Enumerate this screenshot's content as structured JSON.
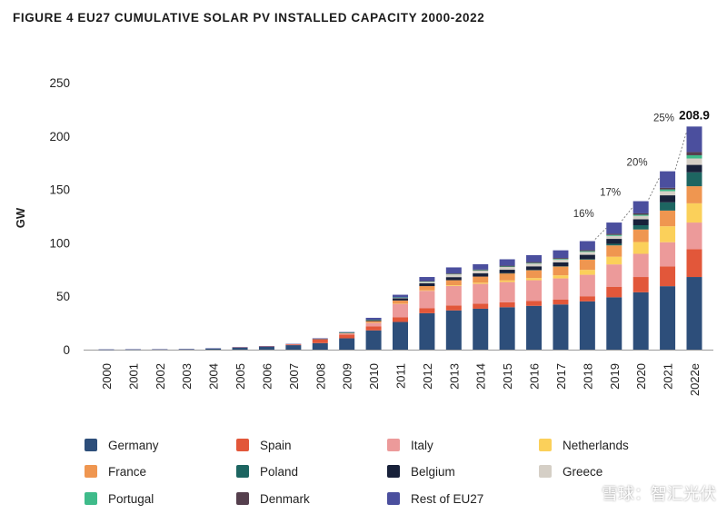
{
  "chart_data": {
    "type": "bar",
    "stacked": true,
    "title": "FIGURE 4 EU27 CUMULATIVE SOLAR PV INSTALLED CAPACITY 2000-2022",
    "xlabel": "",
    "ylabel": "GW",
    "ylim": [
      0,
      250
    ],
    "yticks": [
      0,
      50,
      100,
      150,
      200,
      250
    ],
    "grid": false,
    "legend_placement": "bottom",
    "categories": [
      "2000",
      "2001",
      "2002",
      "2003",
      "2004",
      "2005",
      "2006",
      "2007",
      "2008",
      "2009",
      "2010",
      "2011",
      "2012",
      "2013",
      "2014",
      "2015",
      "2016",
      "2017",
      "2018",
      "2019",
      "2020",
      "2021",
      "2022e"
    ],
    "series": [
      {
        "name": "Germany",
        "color": "#2d4e7a",
        "values": [
          0.1,
          0.2,
          0.3,
          0.4,
          1.1,
          2.1,
          2.9,
          4.2,
          6.1,
          10.6,
          18,
          25.9,
          34.1,
          36.7,
          38.3,
          39.7,
          41,
          42.3,
          45.2,
          49,
          53.7,
          59.4,
          68
        ]
      },
      {
        "name": "Spain",
        "color": "#e2573a",
        "values": [
          0,
          0,
          0,
          0,
          0,
          0.1,
          0.2,
          0.7,
          3.4,
          3.4,
          3.9,
          4.3,
          4.6,
          4.7,
          4.7,
          4.7,
          4.7,
          4.7,
          4.8,
          9.9,
          14.3,
          18.6,
          26
        ]
      },
      {
        "name": "Italy",
        "color": "#ec9a9a",
        "values": [
          0,
          0,
          0,
          0,
          0,
          0,
          0.1,
          0.4,
          0.5,
          1.1,
          3.5,
          12.8,
          16.4,
          18.2,
          18.6,
          18.9,
          19.3,
          19.7,
          20.1,
          20.9,
          21.7,
          22.6,
          25
        ]
      },
      {
        "name": "Netherlands",
        "color": "#fbd05a",
        "values": [
          0,
          0,
          0,
          0,
          0,
          0,
          0,
          0,
          0,
          0,
          0.1,
          0.1,
          0.4,
          0.7,
          1.1,
          1.5,
          2,
          2.9,
          4.6,
          7.2,
          11.1,
          14.9,
          18
        ]
      },
      {
        "name": "France",
        "color": "#ef9650",
        "values": [
          0,
          0,
          0,
          0,
          0,
          0,
          0,
          0,
          0.1,
          0.3,
          1.2,
          2.9,
          4,
          4.7,
          5.7,
          6.7,
          7.4,
          8.2,
          9.5,
          10.6,
          11.7,
          14.7,
          16
        ]
      },
      {
        "name": "Poland",
        "color": "#1d6561",
        "values": [
          0,
          0,
          0,
          0,
          0,
          0,
          0,
          0,
          0,
          0,
          0,
          0,
          0,
          0,
          0,
          0.1,
          0.2,
          0.3,
          0.6,
          1.5,
          4,
          7.7,
          13
        ]
      },
      {
        "name": "Belgium",
        "color": "#18213a",
        "values": [
          0,
          0,
          0,
          0,
          0,
          0,
          0,
          0,
          0.1,
          0.6,
          1,
          2.1,
          2.6,
          2.9,
          3,
          3.2,
          3.4,
          3.6,
          4,
          4.6,
          5.6,
          6.6,
          7
        ]
      },
      {
        "name": "Greece",
        "color": "#d5cfc6",
        "values": [
          0,
          0,
          0,
          0,
          0,
          0,
          0,
          0,
          0,
          0.1,
          0.2,
          0.6,
          1.5,
          2.6,
          2.6,
          2.6,
          2.6,
          2.6,
          2.7,
          2.8,
          3.2,
          3.9,
          6
        ]
      },
      {
        "name": "Portugal",
        "color": "#3fbb8a",
        "values": [
          0,
          0,
          0,
          0,
          0,
          0,
          0,
          0,
          0,
          0.1,
          0.1,
          0.2,
          0.2,
          0.3,
          0.4,
          0.4,
          0.5,
          0.6,
          0.7,
          0.9,
          1,
          1.6,
          3
        ]
      },
      {
        "name": "Denmark",
        "color": "#553f4d",
        "values": [
          0,
          0,
          0,
          0,
          0,
          0,
          0,
          0,
          0,
          0,
          0,
          0,
          0.4,
          0.6,
          0.6,
          0.8,
          0.9,
          0.9,
          1,
          1.1,
          1.3,
          1.5,
          3
        ]
      },
      {
        "name": "Rest of EU27",
        "color": "#4b4f9e",
        "values": [
          0.1,
          0.1,
          0.1,
          0.2,
          0.2,
          0.1,
          0.1,
          0.1,
          0.4,
          0.3,
          1.8,
          2.5,
          3.8,
          5.6,
          5,
          6,
          6.5,
          7.2,
          8.4,
          10.5,
          11.4,
          15.5,
          23.9
        ]
      }
    ],
    "annotations": {
      "total_label": {
        "category": "2022e",
        "text": "208.9"
      },
      "growth": [
        {
          "from": "2018",
          "to": "2019",
          "text": "16%"
        },
        {
          "from": "2019",
          "to": "2020",
          "text": "17%"
        },
        {
          "from": "2020",
          "to": "2021",
          "text": "20%"
        },
        {
          "from": "2021",
          "to": "2022e",
          "text": "25%"
        }
      ]
    }
  },
  "watermark": "雪球：智汇光伏"
}
